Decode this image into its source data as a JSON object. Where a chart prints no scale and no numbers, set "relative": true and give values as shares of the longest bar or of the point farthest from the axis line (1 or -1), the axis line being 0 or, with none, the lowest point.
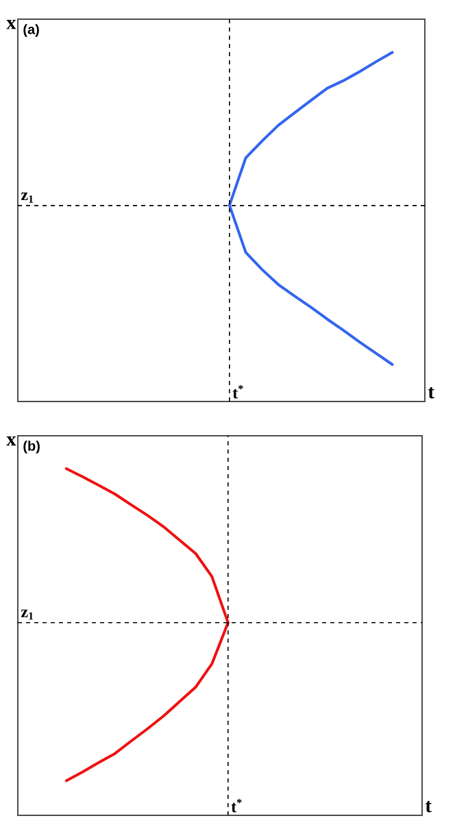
{
  "chart_data": [
    {
      "type": "line",
      "title": "(a)",
      "xlabel": "t",
      "ylabel": "x",
      "relative": true,
      "categories": [
        null,
        null,
        null,
        null,
        null,
        null,
        null,
        null,
        null,
        null,
        null,
        null,
        null,
        null,
        null,
        null,
        null,
        null,
        null,
        null,
        null,
        null,
        null,
        null
      ],
      "series": [
        {
          "color": "#3366ee",
          "values": [
            null,
            null,
            null,
            null,
            null,
            null,
            null,
            null,
            null,
            null,
            null,
            null,
            0.562,
            0.698,
            0.746,
            0.791,
            0.827,
            0.862,
            0.897,
            0.919,
            0.945,
            0.973,
            1.0,
            null
          ]
        },
        {
          "color": "#3366ee",
          "values": [
            null,
            null,
            null,
            null,
            null,
            null,
            null,
            null,
            null,
            null,
            null,
            null,
            0.562,
            0.427,
            0.378,
            0.335,
            0.302,
            0.27,
            0.236,
            0.204,
            0.17,
            0.138,
            0.106,
            null
          ]
        }
      ],
      "ref_lines": [
        {
          "axis": "x",
          "label": "t$^{*}$",
          "line_style": "dashed"
        },
        {
          "axis": "y",
          "value": 0.561,
          "label": "z$_{1}$",
          "line_style": "dashed"
        }
      ]
    },
    {
      "type": "line",
      "title": "(b)",
      "xlabel": "t",
      "ylabel": "x",
      "relative": true,
      "categories": [
        null,
        null,
        null,
        null,
        null,
        null,
        null,
        null,
        null,
        null,
        null,
        null,
        null,
        null,
        null,
        null,
        null,
        null,
        null,
        null,
        null,
        null,
        null,
        null
      ],
      "series": [
        {
          "color": "#ee1111",
          "values": [
            null,
            null,
            1.0,
            0.977,
            0.952,
            0.927,
            0.896,
            0.866,
            0.833,
            0.794,
            0.755,
            0.689,
            0.556,
            null,
            null,
            null,
            null,
            null,
            null,
            null,
            null,
            null,
            null,
            null
          ]
        },
        {
          "color": "#ee1111",
          "values": [
            null,
            null,
            0.1,
            0.125,
            0.152,
            0.178,
            0.214,
            0.249,
            0.286,
            0.328,
            0.37,
            0.437,
            0.556,
            null,
            null,
            null,
            null,
            null,
            null,
            null,
            null,
            null,
            null,
            null
          ]
        }
      ],
      "ref_lines": [
        {
          "axis": "x",
          "label": "t$^{*}$",
          "line_style": "dashed"
        },
        {
          "axis": "y",
          "value": 0.556,
          "label": "z$_{1}$",
          "line_style": "dashed"
        }
      ]
    }
  ]
}
